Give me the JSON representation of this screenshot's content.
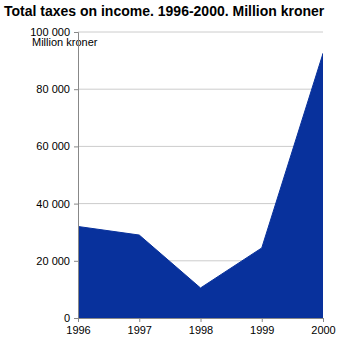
{
  "chart_data": {
    "type": "area",
    "title": "Total taxes on income. 1996-2000. Million kroner",
    "y_label": "Million kroner",
    "x": [
      1996,
      1997,
      1998,
      1999,
      2000
    ],
    "values": [
      32000,
      29000,
      10500,
      24500,
      92500
    ],
    "color": "#08319c",
    "xlim": [
      1996,
      2000
    ],
    "xticks": [
      1996,
      1997,
      1998,
      1999,
      2000
    ],
    "ylim": [
      0,
      100000
    ],
    "yticks": [
      0,
      {
        "value": 20000,
        "label": "20 000"
      },
      {
        "value": 40000,
        "label": "40 000"
      },
      {
        "value": 60000,
        "label": "60 000"
      },
      {
        "value": 80000,
        "label": "80 000"
      },
      {
        "value": 100000,
        "label": "100 000"
      }
    ],
    "grid": true
  }
}
